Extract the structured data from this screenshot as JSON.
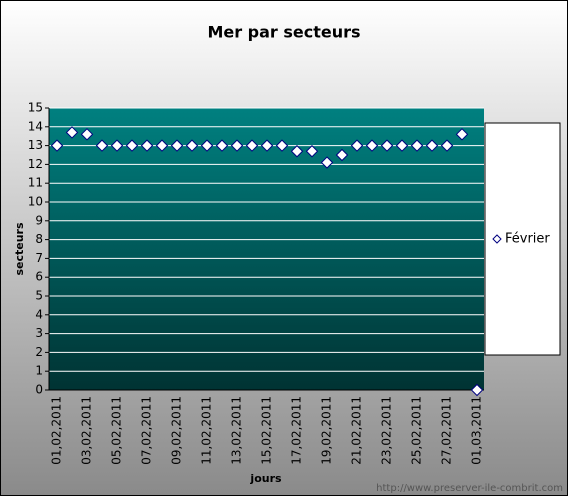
{
  "chart_data": {
    "type": "scatter-line",
    "title": "Mer par secteurs",
    "x_label": "jours",
    "y_label": "secteurs",
    "categories": [
      "01,02,2011",
      null,
      "03,02,2011",
      null,
      "05,02,2011",
      null,
      "07,02,2011",
      null,
      "09,02,2011",
      null,
      "11,02,2011",
      null,
      "13,02,2011",
      null,
      "15,02,2011",
      null,
      "17,02,2011",
      null,
      "19,02,2011",
      null,
      "21,02,2011",
      null,
      "23,02,2011",
      null,
      "25,02,2011",
      null,
      "27,02,2011",
      null,
      "01,03,2011"
    ],
    "series": [
      {
        "name": "Février",
        "color": "#ffffff",
        "values": [
          13,
          13.7,
          13.6,
          13,
          13,
          13,
          13,
          13,
          13,
          13,
          13,
          13,
          13,
          13,
          13,
          13,
          12.7,
          12.7,
          12.1,
          12.5,
          13,
          13,
          13,
          13,
          13,
          13,
          13,
          13.6,
          0
        ]
      }
    ],
    "ylim": [
      0,
      15
    ],
    "yticks": [
      0,
      1,
      2,
      3,
      4,
      5,
      6,
      7,
      8,
      9,
      10,
      11,
      12,
      13,
      14,
      15
    ],
    "grid": true,
    "legend": "right",
    "watermark": "http://www.preserver-ile-combrit.com"
  }
}
